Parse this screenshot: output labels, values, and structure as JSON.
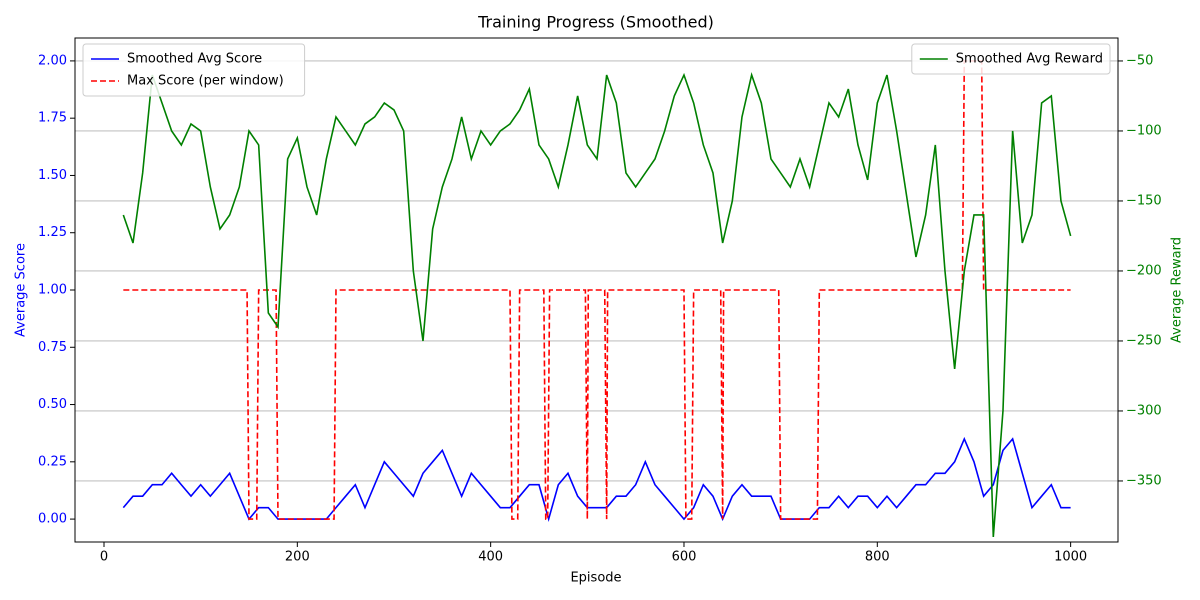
{
  "chart_data": {
    "type": "line",
    "title": "Training Progress (Smoothed)",
    "xlabel": "Episode",
    "ylabel": "Average Score",
    "y2label": "Average Reward",
    "xlim": [
      -30,
      1049
    ],
    "xticks": [
      0,
      200,
      400,
      600,
      800,
      1000
    ],
    "ylim": [
      -0.1,
      2.1
    ],
    "yticks": [
      {
        "value": 0,
        "label": "0.00"
      },
      {
        "value": 0.25,
        "label": "0.25"
      },
      {
        "value": 0.5,
        "label": "0.50"
      },
      {
        "value": 0.75,
        "label": "0.75"
      },
      {
        "value": 1,
        "label": "1.00"
      },
      {
        "value": 1.25,
        "label": "1.25"
      },
      {
        "value": 1.5,
        "label": "1.50"
      },
      {
        "value": 1.75,
        "label": "1.75"
      },
      {
        "value": 2,
        "label": "2.00"
      }
    ],
    "y2lim": [
      -393.6,
      -33.6
    ],
    "y2ticks": [
      {
        "value": -350,
        "label": "−350"
      },
      {
        "value": -300,
        "label": "−300"
      },
      {
        "value": -250,
        "label": "−250"
      },
      {
        "value": -200,
        "label": "−200"
      },
      {
        "value": -150,
        "label": "−150"
      },
      {
        "value": -100,
        "label": "−100"
      },
      {
        "value": -50,
        "label": "−50"
      }
    ],
    "grid": "y2",
    "legend_loc": "upper left",
    "legend2_loc": "upper right",
    "series": [
      {
        "name": "Smoothed Avg Score",
        "color": "#0000ff",
        "linestyle": "solid",
        "x": [
          20,
          30,
          40,
          50,
          60,
          70,
          80,
          90,
          100,
          110,
          120,
          130,
          140,
          150,
          160,
          170,
          180,
          190,
          200,
          210,
          220,
          230,
          240,
          250,
          260,
          270,
          280,
          290,
          300,
          310,
          320,
          330,
          340,
          350,
          360,
          370,
          380,
          390,
          400,
          410,
          420,
          430,
          440,
          450,
          460,
          470,
          480,
          490,
          500,
          510,
          520,
          530,
          540,
          550,
          560,
          570,
          580,
          590,
          600,
          610,
          620,
          630,
          640,
          650,
          660,
          670,
          680,
          690,
          700,
          710,
          720,
          730,
          740,
          750,
          760,
          770,
          780,
          790,
          800,
          810,
          820,
          830,
          840,
          850,
          860,
          870,
          880,
          890,
          900,
          910,
          920,
          930,
          940,
          950,
          960,
          970,
          980,
          990,
          1000
        ],
        "values": [
          0.05,
          0.1,
          0.1,
          0.15,
          0.15,
          0.2,
          0.15,
          0.1,
          0.15,
          0.1,
          0.15,
          0.2,
          0.1,
          0,
          0.05,
          0.05,
          0,
          0,
          0,
          0,
          0,
          0,
          0.05,
          0.1,
          0.15,
          0.05,
          0.15,
          0.25,
          0.2,
          0.15,
          0.1,
          0.2,
          0.25,
          0.3,
          0.2,
          0.1,
          0.2,
          0.15,
          0.1,
          0.05,
          0.05,
          0.1,
          0.15,
          0.15,
          0,
          0.15,
          0.2,
          0.1,
          0.05,
          0.05,
          0.05,
          0.1,
          0.1,
          0.15,
          0.25,
          0.15,
          0.1,
          0.05,
          0,
          0.05,
          0.15,
          0.1,
          0,
          0.1,
          0.15,
          0.1,
          0.1,
          0.1,
          0,
          0,
          0,
          0,
          0.05,
          0.05,
          0.1,
          0.05,
          0.1,
          0.1,
          0.05,
          0.1,
          0.05,
          0.1,
          0.15,
          0.15,
          0.2,
          0.2,
          0.25,
          0.35,
          0.25,
          0.1,
          0.15,
          0.3,
          0.35,
          0.2,
          0.05,
          0.1,
          0.15,
          0.05,
          0.05
        ]
      },
      {
        "name": "Max Score (per window)",
        "color": "#ff0000",
        "linestyle": "dashed",
        "x": [
          20,
          148,
          150,
          158,
          160,
          178,
          180,
          238,
          240,
          420,
          422,
          428,
          430,
          455,
          457,
          459,
          461,
          498,
          500,
          501,
          518,
          520,
          521,
          600,
          602,
          608,
          610,
          638,
          640,
          641,
          698,
          700,
          738,
          740,
          888,
          890,
          908,
          910,
          1000
        ],
        "values": [
          1,
          1,
          0,
          0,
          1,
          1,
          0,
          0,
          1,
          1,
          0,
          0,
          1,
          1,
          0,
          0,
          1,
          1,
          0,
          1,
          1,
          0,
          1,
          1,
          0,
          0,
          1,
          1,
          0,
          1,
          1,
          0,
          0,
          1,
          1,
          2,
          2,
          1,
          1
        ]
      },
      {
        "name": "Smoothed Avg Reward",
        "color": "#008000",
        "linestyle": "solid",
        "axis": "y2",
        "x": [
          20,
          30,
          40,
          50,
          60,
          70,
          80,
          90,
          100,
          110,
          120,
          130,
          140,
          150,
          160,
          170,
          180,
          190,
          200,
          210,
          220,
          230,
          240,
          250,
          260,
          270,
          280,
          290,
          300,
          310,
          320,
          330,
          340,
          350,
          360,
          370,
          380,
          390,
          400,
          410,
          420,
          430,
          440,
          450,
          460,
          470,
          480,
          490,
          500,
          510,
          520,
          530,
          540,
          550,
          560,
          570,
          580,
          590,
          600,
          610,
          620,
          630,
          640,
          650,
          660,
          670,
          680,
          690,
          700,
          710,
          720,
          730,
          740,
          750,
          760,
          770,
          780,
          790,
          800,
          810,
          820,
          830,
          840,
          850,
          860,
          870,
          880,
          890,
          900,
          910,
          920,
          930,
          940,
          950,
          960,
          970,
          980,
          990,
          1000
        ],
        "values": [
          -160,
          -180,
          -130,
          -60,
          -80,
          -100,
          -110,
          -95,
          -100,
          -140,
          -170,
          -160,
          -140,
          -100,
          -110,
          -230,
          -240,
          -120,
          -105,
          -140,
          -160,
          -120,
          -90,
          -100,
          -110,
          -95,
          -90,
          -80,
          -85,
          -100,
          -200,
          -250,
          -170,
          -140,
          -120,
          -90,
          -120,
          -100,
          -110,
          -100,
          -95,
          -85,
          -70,
          -110,
          -120,
          -140,
          -110,
          -75,
          -110,
          -120,
          -60,
          -80,
          -130,
          -140,
          -130,
          -120,
          -100,
          -75,
          -60,
          -80,
          -110,
          -130,
          -180,
          -150,
          -90,
          -60,
          -80,
          -120,
          -130,
          -140,
          -120,
          -140,
          -110,
          -80,
          -90,
          -70,
          -110,
          -135,
          -80,
          -60,
          -100,
          -145,
          -190,
          -160,
          -110,
          -200,
          -270,
          -200,
          -160,
          -160,
          -390,
          -300,
          -100,
          -180,
          -160,
          -80,
          -75,
          -150,
          -175
        ]
      }
    ]
  }
}
